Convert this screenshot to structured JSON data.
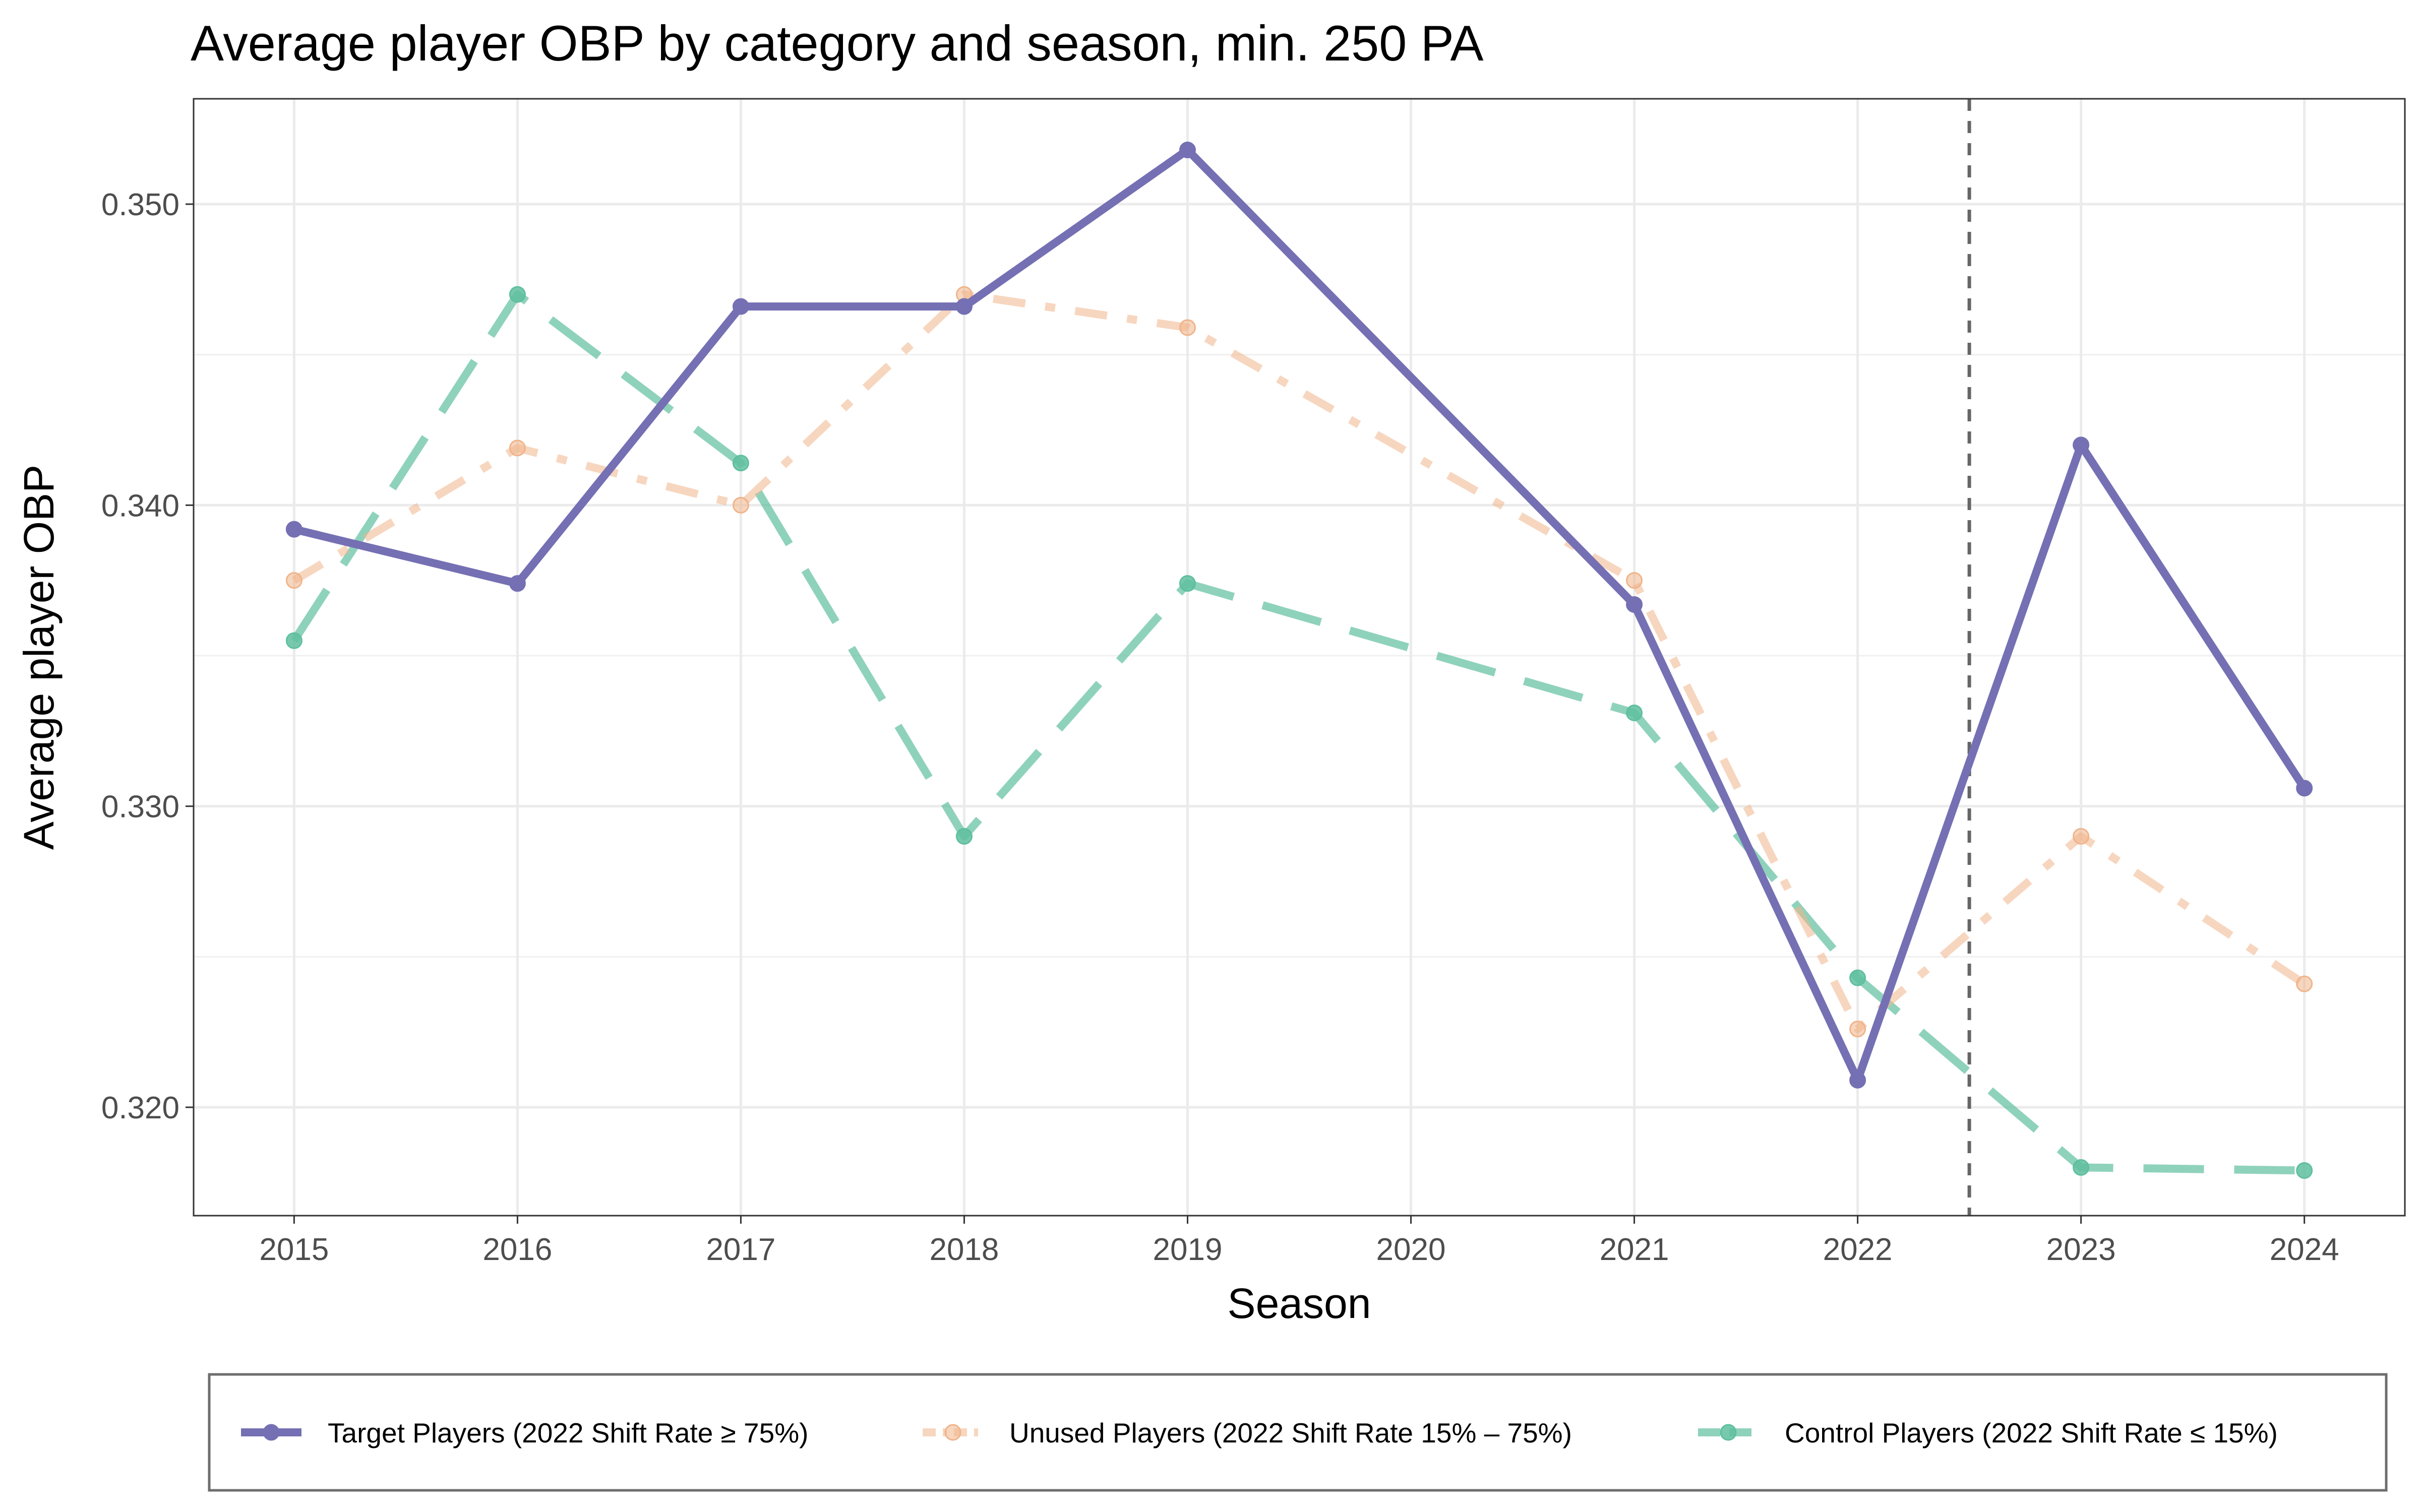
{
  "chart_data": {
    "type": "line",
    "title": "Average player OBP by category and season, min. 250 PA",
    "xlabel": "Season",
    "ylabel": "Average player OBP",
    "x": [
      2015,
      2016,
      2017,
      2018,
      2019,
      2021,
      2022,
      2023,
      2024
    ],
    "xlim": [
      2014.55,
      2024.45
    ],
    "ylim": [
      0.3164,
      0.3535
    ],
    "xticks": [
      "2015",
      "2016",
      "2017",
      "2018",
      "2019",
      "2020",
      "2021",
      "2022",
      "2023",
      "2024"
    ],
    "yticks": [
      "0.320",
      "0.330",
      "0.340",
      "0.350"
    ],
    "minor_yticks": [
      0.325,
      0.335,
      0.345
    ],
    "grid": true,
    "legend_position": "bottom",
    "reference_line": {
      "x": 2022.5,
      "style": "dashed",
      "color": "#666666"
    },
    "series": [
      {
        "name": "Target Players (2022 Shift Rate ≥ 75%)",
        "color": "#7570b3",
        "style": "solid",
        "values": [
          0.3392,
          0.3374,
          0.3466,
          0.3466,
          0.3518,
          0.3367,
          0.3209,
          0.342,
          0.3306
        ]
      },
      {
        "name": "Unused Players (2022 Shift Rate 15% – 75%)",
        "color": "#f0b48a",
        "style": "dashdot",
        "values": [
          0.3375,
          0.3419,
          0.34,
          0.347,
          0.3459,
          0.3375,
          0.3226,
          0.329,
          0.3241
        ]
      },
      {
        "name": "Control Players (2022 Shift Rate ≤ 15%)",
        "color": "#5fbf9f",
        "style": "longdash",
        "values": [
          0.3355,
          0.347,
          0.3414,
          0.329,
          0.3374,
          0.3331,
          0.3243,
          0.318,
          0.3179
        ]
      }
    ]
  }
}
